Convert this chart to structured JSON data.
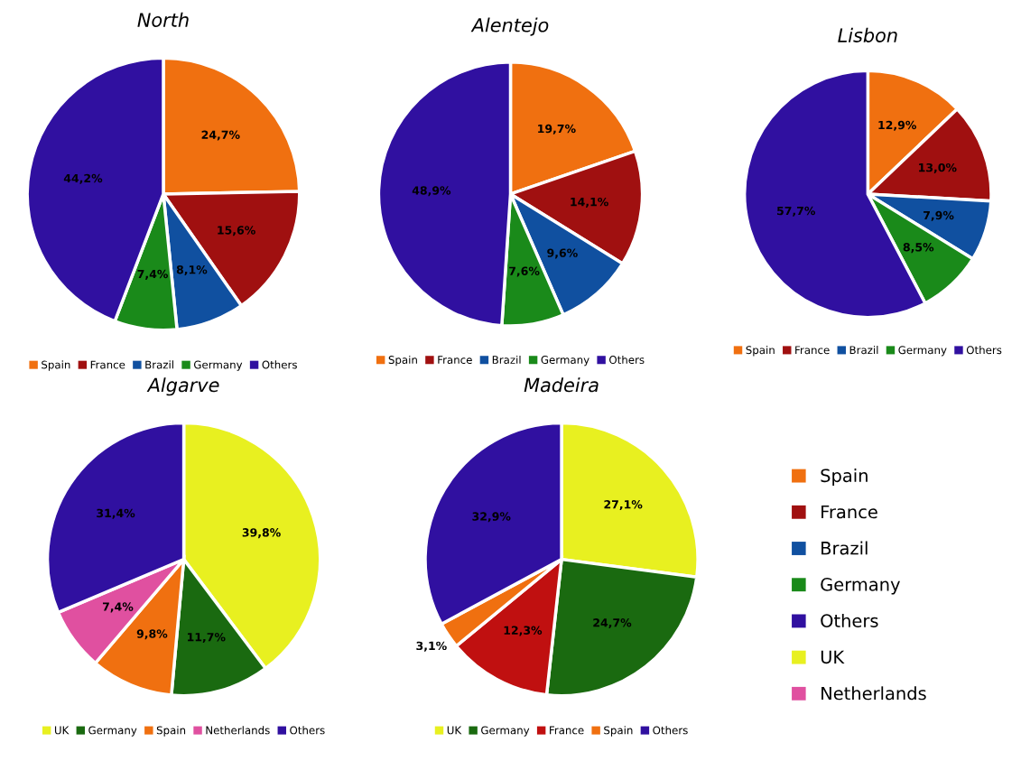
{
  "chart_data": [
    {
      "type": "pie",
      "title": "North",
      "categories": [
        "Spain",
        "France",
        "Brazil",
        "Germany",
        "Others"
      ],
      "values": [
        24.7,
        15.6,
        8.1,
        7.4,
        44.2
      ],
      "value_labels": [
        "24,7%",
        "15,6%",
        "8,1%",
        "7,4%",
        "44,2%"
      ],
      "colors": [
        "#f07010",
        "#a01010",
        "#1050a0",
        "#1a8a1a",
        "#3010a0"
      ],
      "legend": "bottom"
    },
    {
      "type": "pie",
      "title": "Alentejo",
      "categories": [
        "Spain",
        "France",
        "Brazil",
        "Germany",
        "Others"
      ],
      "values": [
        19.7,
        14.1,
        9.6,
        7.6,
        48.9
      ],
      "value_labels": [
        "19,7%",
        "14,1%",
        "9,6%",
        "7,6%",
        "48,9%"
      ],
      "colors": [
        "#f07010",
        "#a01010",
        "#1050a0",
        "#1a8a1a",
        "#3010a0"
      ],
      "legend": "bottom"
    },
    {
      "type": "pie",
      "title": "Lisbon",
      "categories": [
        "Spain",
        "France",
        "Brazil",
        "Germany",
        "Others"
      ],
      "values": [
        12.9,
        13.0,
        7.9,
        8.5,
        57.7
      ],
      "value_labels": [
        "12,9%",
        "13,0%",
        "7,9%",
        "8,5%",
        "57,7%"
      ],
      "colors": [
        "#f07010",
        "#a01010",
        "#1050a0",
        "#1a8a1a",
        "#3010a0"
      ],
      "legend": "bottom"
    },
    {
      "type": "pie",
      "title": "Algarve",
      "categories": [
        "UK",
        "Germany",
        "Spain",
        "Netherlands",
        "Others"
      ],
      "values": [
        39.8,
        11.7,
        9.8,
        7.4,
        31.4
      ],
      "value_labels": [
        "39,8%",
        "11,7%",
        "9,8%",
        "7,4%",
        "31,4%"
      ],
      "colors": [
        "#e8f020",
        "#1a6a10",
        "#f07010",
        "#e050a0",
        "#3010a0"
      ],
      "legend": "bottom"
    },
    {
      "type": "pie",
      "title": "Madeira",
      "categories": [
        "UK",
        "Germany",
        "France",
        "Spain",
        "Others"
      ],
      "values": [
        27.1,
        24.7,
        12.3,
        3.1,
        32.9
      ],
      "value_labels": [
        "27,1%",
        "24,7%",
        "12,3%",
        "3,1%",
        "32,9%"
      ],
      "colors": [
        "#e8f020",
        "#1a6a10",
        "#c01010",
        "#f07010",
        "#3010a0"
      ],
      "legend": "bottom"
    },
    {
      "type": "other",
      "categories": [
        "Spain",
        "France",
        "Brazil",
        "Germany",
        "Others",
        "UK",
        "Netherlands"
      ],
      "colors": [
        "#f07010",
        "#a01010",
        "#1050a0",
        "#1a8a1a",
        "#3010a0",
        "#e8f020",
        "#e050a0"
      ]
    }
  ]
}
